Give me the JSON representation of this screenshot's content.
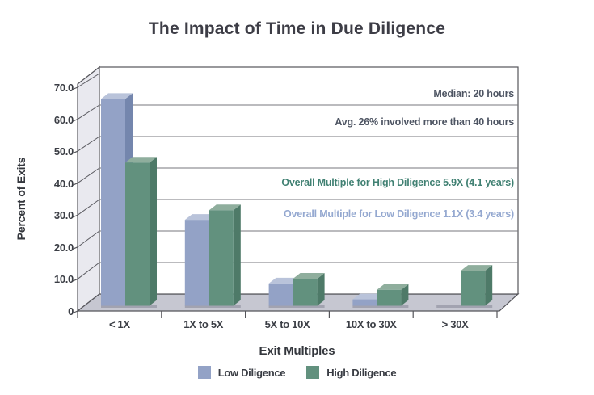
{
  "title": "The Impact of Time in Due Diligence",
  "chart_data": {
    "type": "bar",
    "title": "The Impact of Time in Due Diligence",
    "xlabel": "Exit Multiples",
    "ylabel": "Percent of Exits",
    "ylim": [
      0,
      70
    ],
    "grid": "horizontal",
    "style": "3d",
    "legend_position": "bottom",
    "categories": [
      "< 1X",
      "1X to 5X",
      "5X to 10X",
      "10X to 30X",
      "> 30X"
    ],
    "yticks": [
      {
        "label": "70.0",
        "value": 70
      },
      {
        "label": "60.0",
        "value": 60
      },
      {
        "label": "50.0",
        "value": 50
      },
      {
        "label": "40.0",
        "value": 40
      },
      {
        "label": "30.0",
        "value": 30
      },
      {
        "label": "20.0",
        "value": 20
      },
      {
        "label": "10.0",
        "value": 10
      },
      {
        "label": "0",
        "value": 0
      }
    ],
    "series": [
      {
        "name": "Low Diligence",
        "values": [
          65,
          27,
          7,
          2,
          0
        ],
        "colors": {
          "face": "#93a2c6",
          "top": "#b9c3da",
          "side": "#7486ad"
        }
      },
      {
        "name": "High Diligence",
        "values": [
          45,
          30,
          8.5,
          5,
          11
        ],
        "colors": {
          "face": "#62917e",
          "top": "#8fae9d",
          "side": "#4e7a68"
        }
      }
    ],
    "annotations": [
      {
        "text": "Median: 20 hours",
        "color": "#4e5563"
      },
      {
        "text": "Avg. 26% involved more than 40 hours",
        "color": "#4e5563"
      },
      {
        "text": "Overall Multiple for High Diligence 5.9X (4.1 years)",
        "color": "#418173"
      },
      {
        "text": "Overall Multiple for Low Diligence 1.1X (3.4 years)",
        "color": "#94a8d0"
      }
    ]
  }
}
